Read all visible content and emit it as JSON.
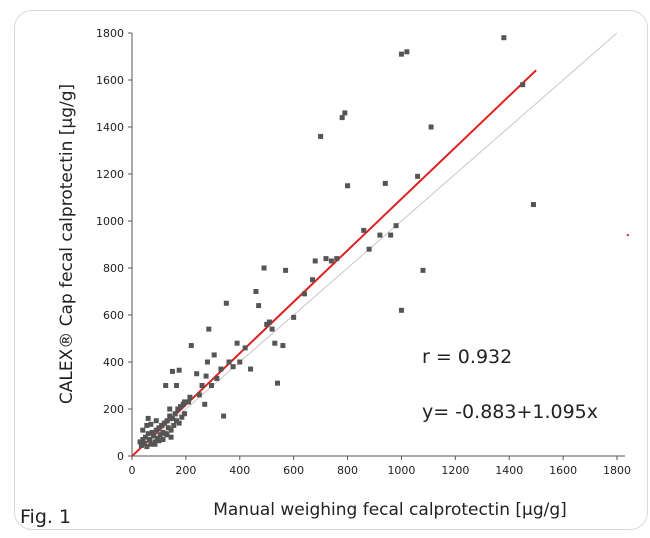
{
  "figure_label": "Fig. 1",
  "chart_data": {
    "type": "scatter",
    "xlabel": "Manual weighing fecal calprotectin [µg/g]",
    "ylabel": "CALEX® Cap fecal calprotectin [µg/g]",
    "xlim": [
      0,
      1800
    ],
    "ylim": [
      0,
      1800
    ],
    "x_ticks": [
      0,
      200,
      400,
      600,
      800,
      1000,
      1200,
      1400,
      1600,
      1800
    ],
    "y_ticks": [
      0,
      200,
      400,
      600,
      800,
      1000,
      1200,
      1400,
      1600,
      1800
    ],
    "grid": false,
    "annotations": {
      "r": "r = 0.932",
      "equation": "y= -0.883+1.095x"
    },
    "regression": {
      "intercept": -0.883,
      "slope": 1.095,
      "x_range": [
        0,
        1500
      ],
      "color": "#e02020"
    },
    "identity_line": {
      "x_range": [
        0,
        1800
      ],
      "color": "#c8c8c8"
    },
    "marker_color": "#555555",
    "points": [
      [
        30,
        60
      ],
      [
        35,
        45
      ],
      [
        40,
        70
      ],
      [
        45,
        55
      ],
      [
        50,
        80
      ],
      [
        55,
        40
      ],
      [
        60,
        95
      ],
      [
        65,
        70
      ],
      [
        70,
        50
      ],
      [
        75,
        100
      ],
      [
        80,
        85
      ],
      [
        85,
        60
      ],
      [
        90,
        110
      ],
      [
        95,
        75
      ],
      [
        100,
        120
      ],
      [
        105,
        90
      ],
      [
        110,
        130
      ],
      [
        115,
        100
      ],
      [
        120,
        140
      ],
      [
        125,
        95
      ],
      [
        130,
        150
      ],
      [
        135,
        120
      ],
      [
        140,
        170
      ],
      [
        145,
        110
      ],
      [
        150,
        160
      ],
      [
        155,
        130
      ],
      [
        160,
        180
      ],
      [
        165,
        150
      ],
      [
        170,
        200
      ],
      [
        175,
        140
      ],
      [
        180,
        210
      ],
      [
        185,
        165
      ],
      [
        190,
        220
      ],
      [
        195,
        180
      ],
      [
        200,
        230
      ],
      [
        40,
        110
      ],
      [
        55,
        130
      ],
      [
        70,
        135
      ],
      [
        90,
        150
      ],
      [
        60,
        160
      ],
      [
        85,
        50
      ],
      [
        100,
        65
      ],
      [
        115,
        70
      ],
      [
        130,
        90
      ],
      [
        145,
        80
      ],
      [
        140,
        200
      ],
      [
        125,
        300
      ],
      [
        150,
        360
      ],
      [
        165,
        300
      ],
      [
        175,
        365
      ],
      [
        195,
        230
      ],
      [
        210,
        230
      ],
      [
        215,
        250
      ],
      [
        220,
        470
      ],
      [
        240,
        350
      ],
      [
        250,
        260
      ],
      [
        260,
        300
      ],
      [
        270,
        220
      ],
      [
        275,
        340
      ],
      [
        280,
        400
      ],
      [
        285,
        540
      ],
      [
        295,
        300
      ],
      [
        305,
        430
      ],
      [
        315,
        330
      ],
      [
        330,
        370
      ],
      [
        340,
        170
      ],
      [
        350,
        650
      ],
      [
        360,
        400
      ],
      [
        375,
        380
      ],
      [
        390,
        480
      ],
      [
        400,
        400
      ],
      [
        420,
        460
      ],
      [
        440,
        370
      ],
      [
        460,
        700
      ],
      [
        470,
        640
      ],
      [
        490,
        800
      ],
      [
        500,
        560
      ],
      [
        510,
        570
      ],
      [
        520,
        540
      ],
      [
        530,
        480
      ],
      [
        540,
        310
      ],
      [
        560,
        470
      ],
      [
        570,
        790
      ],
      [
        600,
        590
      ],
      [
        640,
        690
      ],
      [
        670,
        750
      ],
      [
        680,
        830
      ],
      [
        700,
        1360
      ],
      [
        720,
        840
      ],
      [
        740,
        830
      ],
      [
        760,
        840
      ],
      [
        780,
        1440
      ],
      [
        790,
        1460
      ],
      [
        800,
        1150
      ],
      [
        860,
        960
      ],
      [
        880,
        880
      ],
      [
        920,
        940
      ],
      [
        940,
        1160
      ],
      [
        960,
        940
      ],
      [
        980,
        980
      ],
      [
        1000,
        620
      ],
      [
        1000,
        1710
      ],
      [
        1020,
        1720
      ],
      [
        1060,
        1190
      ],
      [
        1080,
        790
      ],
      [
        1110,
        1400
      ],
      [
        1380,
        1780
      ],
      [
        1450,
        1580
      ],
      [
        1490,
        1070
      ],
      [
        1840,
        940
      ]
    ]
  }
}
